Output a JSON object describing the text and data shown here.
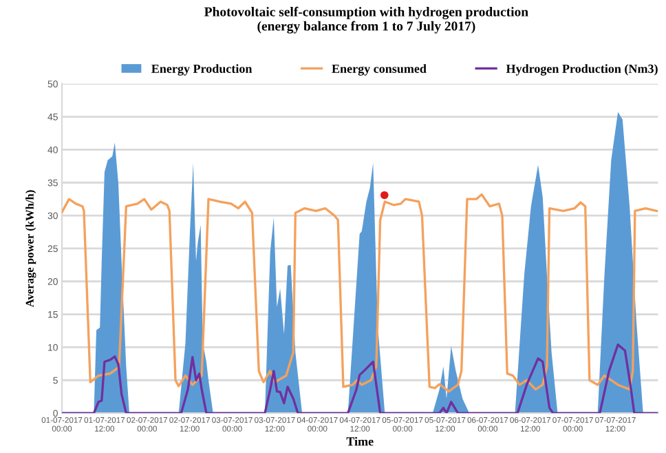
{
  "chart_data": {
    "type": "line",
    "title": "Photovoltaic self-consumption with hydrogen production\n(energy balance from 1 to 7 July 2017)",
    "xlabel": "Time",
    "ylabel": "Average power (kWh/h)",
    "xlim": [
      "2017-07-01T00:00",
      "2017-07-08T00:00"
    ],
    "ylim": [
      0,
      50
    ],
    "xticks": [
      {
        "value": "2017-07-01T00:00",
        "label": "01-07-2017\n00:00"
      },
      {
        "value": "2017-07-01T12:00",
        "label": "01-07-2017\n12:00"
      },
      {
        "value": "2017-07-02T00:00",
        "label": "02-07-2017\n00:00"
      },
      {
        "value": "2017-07-02T12:00",
        "label": "02-07-2017\n12:00"
      },
      {
        "value": "2017-07-03T00:00",
        "label": "03-07-2017\n00:00"
      },
      {
        "value": "2017-07-03T12:00",
        "label": "03-07-2017\n12:00"
      },
      {
        "value": "2017-07-04T00:00",
        "label": "04-07-2017\n00:00"
      },
      {
        "value": "2017-07-04T12:00",
        "label": "04-07-2017\n12:00"
      },
      {
        "value": "2017-07-05T00:00",
        "label": "05-07-2017\n00:00"
      },
      {
        "value": "2017-07-05T12:00",
        "label": "05-07-2017\n12:00"
      },
      {
        "value": "2017-07-06T00:00",
        "label": "06-07-2017\n00:00"
      },
      {
        "value": "2017-07-06T12:00",
        "label": "06-07-2017\n12:00"
      },
      {
        "value": "2017-07-07T00:00",
        "label": "07-07-2017\n00:00"
      },
      {
        "value": "2017-07-07T12:00",
        "label": "07-07-2017\n12:00"
      }
    ],
    "yticks": [
      0,
      5,
      10,
      15,
      20,
      25,
      30,
      35,
      40,
      45,
      50
    ],
    "grid": "y",
    "legend": "top",
    "marker": "none",
    "line_style": "solid",
    "series": [
      {
        "name": "Energy Production",
        "type": "area",
        "color": "#5b9bd5",
        "x": [
          "2017-07-01T00:00",
          "2017-07-01T09:00",
          "2017-07-01T09:42",
          "2017-07-01T10:42",
          "2017-07-01T11:12",
          "2017-07-01T12:00",
          "2017-07-01T12:54",
          "2017-07-01T14:12",
          "2017-07-01T14:54",
          "2017-07-01T15:54",
          "2017-07-01T16:48",
          "2017-07-01T18:06",
          "2017-07-01T19:00",
          "2017-07-02T08:54",
          "2017-07-02T10:48",
          "2017-07-02T12:06",
          "2017-07-02T13:00",
          "2017-07-02T13:48",
          "2017-07-02T14:18",
          "2017-07-02T15:06",
          "2017-07-02T15:42",
          "2017-07-02T16:42",
          "2017-07-02T17:18",
          "2017-07-02T18:36",
          "2017-07-03T09:12",
          "2017-07-03T10:42",
          "2017-07-03T11:42",
          "2017-07-03T12:36",
          "2017-07-03T13:30",
          "2017-07-03T14:36",
          "2017-07-03T15:36",
          "2017-07-03T16:30",
          "2017-07-03T17:48",
          "2017-07-03T19:42",
          "2017-07-04T08:36",
          "2017-07-04T11:54",
          "2017-07-04T12:30",
          "2017-07-04T13:48",
          "2017-07-04T14:48",
          "2017-07-04T15:42",
          "2017-07-04T17:00",
          "2017-07-04T19:00",
          "2017-07-05T08:30",
          "2017-07-05T10:24",
          "2017-07-05T11:30",
          "2017-07-05T12:24",
          "2017-07-05T13:42",
          "2017-07-05T15:00",
          "2017-07-05T16:54",
          "2017-07-05T18:48",
          "2017-07-06T07:42",
          "2017-07-06T10:18",
          "2017-07-06T12:12",
          "2017-07-06T14:12",
          "2017-07-06T15:30",
          "2017-07-06T16:42",
          "2017-07-06T18:00",
          "2017-07-06T19:42",
          "2017-07-07T07:00",
          "2017-07-07T08:54",
          "2017-07-07T10:48",
          "2017-07-07T12:42",
          "2017-07-07T14:00",
          "2017-07-07T16:00",
          "2017-07-07T17:54",
          "2017-07-07T19:48",
          "2017-07-08T00:00"
        ],
        "values": [
          0,
          0,
          12.6,
          13,
          23,
          36.6,
          38.4,
          39,
          41.1,
          34.9,
          23.1,
          7.1,
          0,
          0,
          10.6,
          27.9,
          38.0,
          23.1,
          25.9,
          28.6,
          10.6,
          7.8,
          5,
          0,
          0,
          24.5,
          29.7,
          16.1,
          18.9,
          12,
          22.4,
          22.5,
          9.2,
          0,
          0,
          27.2,
          27.6,
          32.1,
          34.2,
          38.0,
          13.3,
          0,
          0,
          3.6,
          7.1,
          2.2,
          10.2,
          6.4,
          2.2,
          0,
          0,
          21,
          31.4,
          37.7,
          32.8,
          21,
          9.2,
          0,
          0,
          21,
          38.4,
          45.7,
          44.6,
          31.4,
          14,
          0,
          0
        ]
      },
      {
        "name": "Energy consumed",
        "color": "#f4a15d",
        "x": [
          "2017-07-01T00:00",
          "2017-07-01T02:00",
          "2017-07-01T03:54",
          "2017-07-01T05:48",
          "2017-07-01T06:12",
          "2017-07-01T08:00",
          "2017-07-01T10:18",
          "2017-07-01T13:36",
          "2017-07-01T16:06",
          "2017-07-01T18:06",
          "2017-07-01T21:18",
          "2017-07-01T23:12",
          "2017-07-02T01:12",
          "2017-07-02T03:48",
          "2017-07-02T05:42",
          "2017-07-02T06:18",
          "2017-07-02T08:00",
          "2017-07-02T08:54",
          "2017-07-02T10:48",
          "2017-07-02T12:48",
          "2017-07-02T15:24",
          "2017-07-02T17:18",
          "2017-07-02T20:30",
          "2017-07-02T23:42",
          "2017-07-03T01:42",
          "2017-07-03T03:36",
          "2017-07-03T05:36",
          "2017-07-03T07:30",
          "2017-07-03T08:48",
          "2017-07-03T10:42",
          "2017-07-03T12:00",
          "2017-07-03T15:12",
          "2017-07-03T17:12",
          "2017-07-03T17:48",
          "2017-07-03T20:24",
          "2017-07-03T23:36",
          "2017-07-04T02:12",
          "2017-07-04T04:48",
          "2017-07-04T05:48",
          "2017-07-04T07:18",
          "2017-07-04T09:54",
          "2017-07-04T11:12",
          "2017-07-04T12:30",
          "2017-07-04T15:06",
          "2017-07-04T16:36",
          "2017-07-04T17:42",
          "2017-07-04T19:00",
          "2017-07-04T21:30",
          "2017-07-04T23:30",
          "2017-07-05T00:48",
          "2017-07-05T04:36",
          "2017-07-05T05:30",
          "2017-07-05T07:36",
          "2017-07-05T09:06",
          "2017-07-05T10:24",
          "2017-07-05T13:00",
          "2017-07-05T15:36",
          "2017-07-05T16:36",
          "2017-07-05T18:12",
          "2017-07-05T20:48",
          "2017-07-05T22:18",
          "2017-07-06T00:36",
          "2017-07-06T03:12",
          "2017-07-06T04:06",
          "2017-07-06T05:30",
          "2017-07-06T07:06",
          "2017-07-06T09:00",
          "2017-07-06T11:00",
          "2017-07-06T13:30",
          "2017-07-06T15:30",
          "2017-07-06T16:42",
          "2017-07-06T17:24",
          "2017-07-06T21:18",
          "2017-07-07T00:30",
          "2017-07-07T02:12",
          "2017-07-07T03:30",
          "2017-07-07T04:42",
          "2017-07-07T07:00",
          "2017-07-07T08:54",
          "2017-07-07T12:42",
          "2017-07-07T16:00",
          "2017-07-07T16:54",
          "2017-07-07T17:30",
          "2017-07-07T20:30",
          "2017-07-07T23:42"
        ],
        "values": [
          30.5,
          32.5,
          31.8,
          31.4,
          30.7,
          4.7,
          5.7,
          6.0,
          7.0,
          31.4,
          31.8,
          32.5,
          30.9,
          32.1,
          31.6,
          30.7,
          5.0,
          4.1,
          5.7,
          4.3,
          5.7,
          32.5,
          32.1,
          31.8,
          31.1,
          32.1,
          30.4,
          6.4,
          4.7,
          6.4,
          4.7,
          5.7,
          9.2,
          30.4,
          31.1,
          30.7,
          31.1,
          30.0,
          29.3,
          4.0,
          4.3,
          5.0,
          4.3,
          5.0,
          7.1,
          29.3,
          32.1,
          31.6,
          31.8,
          32.5,
          32.1,
          30.0,
          4.0,
          3.8,
          4.4,
          3.3,
          4.3,
          6.4,
          32.5,
          32.5,
          33.2,
          31.4,
          31.8,
          30.0,
          6.0,
          5.7,
          4.3,
          5.0,
          3.6,
          4.3,
          7.1,
          31.1,
          30.7,
          31.1,
          32.0,
          31.4,
          5.0,
          4.3,
          5.7,
          4.3,
          3.6,
          6.4,
          30.7,
          31.1,
          30.7
        ]
      },
      {
        "name": "Hydrogen Production (Nm3)",
        "color": "#7030a0",
        "x": [
          "2017-07-01T00:00",
          "2017-07-01T09:00",
          "2017-07-01T10:18",
          "2017-07-01T11:12",
          "2017-07-01T12:00",
          "2017-07-01T13:36",
          "2017-07-01T14:54",
          "2017-07-01T15:54",
          "2017-07-01T16:48",
          "2017-07-01T18:06",
          "2017-07-02T09:36",
          "2017-07-02T11:30",
          "2017-07-02T12:48",
          "2017-07-02T13:48",
          "2017-07-02T14:42",
          "2017-07-02T15:24",
          "2017-07-02T16:42",
          "2017-07-03T09:12",
          "2017-07-03T10:42",
          "2017-07-03T11:42",
          "2017-07-03T12:36",
          "2017-07-03T13:30",
          "2017-07-03T14:36",
          "2017-07-03T15:36",
          "2017-07-03T17:12",
          "2017-07-03T18:30",
          "2017-07-04T08:36",
          "2017-07-04T11:00",
          "2017-07-04T11:54",
          "2017-07-04T13:06",
          "2017-07-04T15:42",
          "2017-07-04T17:42",
          "2017-07-05T10:24",
          "2017-07-05T11:30",
          "2017-07-05T12:24",
          "2017-07-05T13:42",
          "2017-07-05T15:36",
          "2017-07-06T08:24",
          "2017-07-06T11:00",
          "2017-07-06T14:12",
          "2017-07-06T15:30",
          "2017-07-06T17:24",
          "2017-07-06T18:24",
          "2017-07-07T07:36",
          "2017-07-07T10:12",
          "2017-07-07T12:42",
          "2017-07-07T14:42",
          "2017-07-07T16:24",
          "2017-07-07T17:18",
          "2017-07-08T00:00"
        ],
        "values": [
          0,
          0,
          1.7,
          1.9,
          7.8,
          8.1,
          8.6,
          7.4,
          2.9,
          0,
          0,
          3.6,
          8.5,
          5,
          6,
          3.6,
          0,
          0,
          3.6,
          6.4,
          3.3,
          3.2,
          1.5,
          4,
          2.2,
          0,
          0,
          3.6,
          5.8,
          6.4,
          7.8,
          0,
          0,
          0.8,
          0,
          1.7,
          0,
          0,
          4.3,
          8.3,
          7.8,
          0.8,
          0,
          0,
          6.4,
          10.4,
          9.5,
          3.6,
          0,
          0
        ]
      },
      {
        "type": "scatter",
        "marker": "circle",
        "color": "#e31a1c",
        "x": [
          "2017-07-04T18:54"
        ],
        "values": [
          33.1
        ]
      }
    ]
  }
}
